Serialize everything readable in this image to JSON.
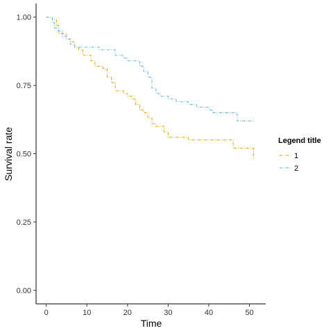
{
  "chart_data": {
    "type": "line",
    "step": true,
    "xlabel": "Time",
    "ylabel": "Survival rate",
    "xlim": [
      -2.5,
      54
    ],
    "ylim": [
      -0.05,
      1.05
    ],
    "xticks": [
      0,
      10,
      20,
      30,
      40,
      50
    ],
    "yticks": [
      "0.00",
      "0.25",
      "0.50",
      "0.75",
      "1.00"
    ],
    "grid": false,
    "legend": {
      "title": "Legend title",
      "position": "right"
    },
    "series": [
      {
        "name": "1",
        "color": "#E69F00",
        "line_style": "dash-dot",
        "points": [
          [
            0,
            1.0
          ],
          [
            1.5,
            0.99
          ],
          [
            2.5,
            0.97
          ],
          [
            3,
            0.94
          ],
          [
            5,
            0.92
          ],
          [
            6,
            0.91
          ],
          [
            7,
            0.89
          ],
          [
            8,
            0.88
          ],
          [
            9,
            0.86
          ],
          [
            11,
            0.84
          ],
          [
            12,
            0.82
          ],
          [
            14,
            0.81
          ],
          [
            15,
            0.78
          ],
          [
            16,
            0.76
          ],
          [
            17,
            0.73
          ],
          [
            19,
            0.72
          ],
          [
            20,
            0.71
          ],
          [
            21,
            0.7
          ],
          [
            22,
            0.68
          ],
          [
            23,
            0.66
          ],
          [
            24,
            0.65
          ],
          [
            25,
            0.63
          ],
          [
            26,
            0.61
          ],
          [
            27,
            0.6
          ],
          [
            29,
            0.58
          ],
          [
            30,
            0.56
          ],
          [
            35,
            0.55
          ],
          [
            46,
            0.52
          ],
          [
            51,
            0.48
          ]
        ]
      },
      {
        "name": "2",
        "color": "#56B4E9",
        "line_style": "dash-dot",
        "points": [
          [
            0,
            1.0
          ],
          [
            1.5,
            0.98
          ],
          [
            2,
            0.96
          ],
          [
            3,
            0.95
          ],
          [
            4,
            0.93
          ],
          [
            5,
            0.92
          ],
          [
            6,
            0.9
          ],
          [
            7,
            0.89
          ],
          [
            13,
            0.88
          ],
          [
            17,
            0.86
          ],
          [
            19,
            0.85
          ],
          [
            20,
            0.84
          ],
          [
            23,
            0.82
          ],
          [
            24,
            0.8
          ],
          [
            25,
            0.78
          ],
          [
            26,
            0.74
          ],
          [
            27,
            0.72
          ],
          [
            28,
            0.71
          ],
          [
            30,
            0.7
          ],
          [
            32,
            0.69
          ],
          [
            35,
            0.68
          ],
          [
            37,
            0.67
          ],
          [
            40,
            0.66
          ],
          [
            41,
            0.65
          ],
          [
            47,
            0.62
          ],
          [
            51,
            0.62
          ]
        ]
      }
    ]
  }
}
